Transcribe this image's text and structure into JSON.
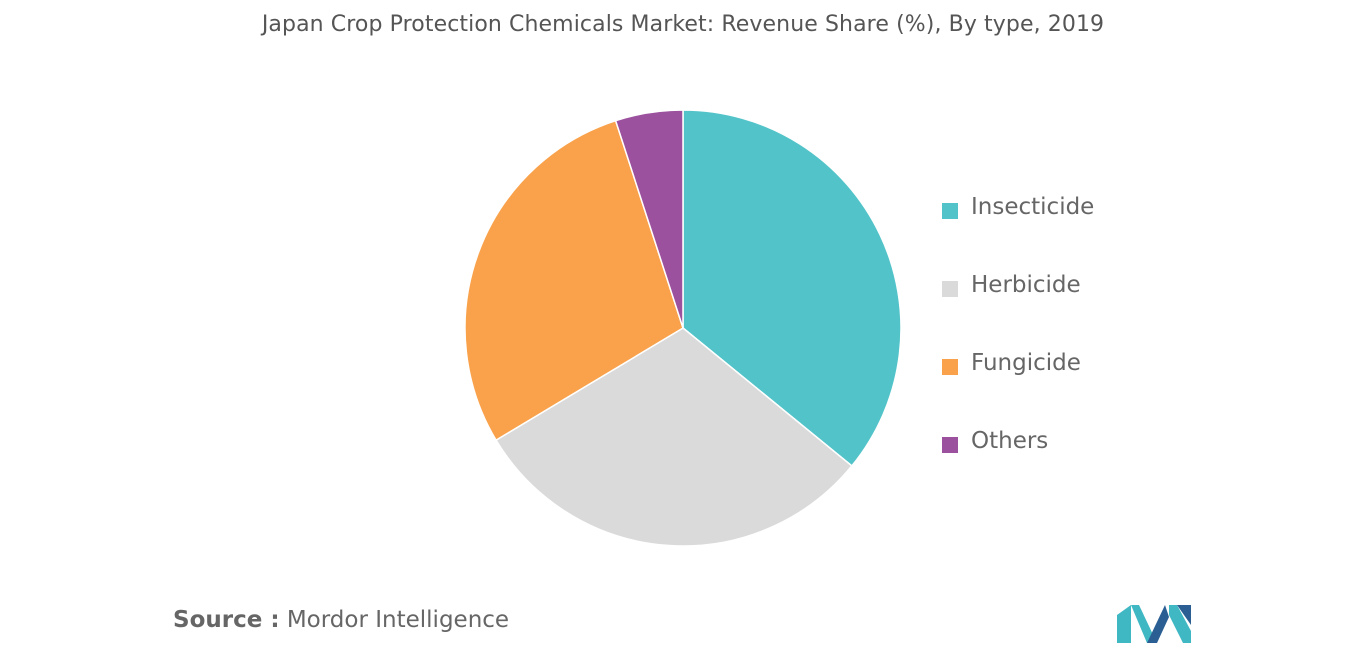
{
  "colors": {
    "insecticide": "#52c4c9",
    "herbicide": "#dadada",
    "fungicide": "#f9a24b",
    "others": "#9b519e",
    "logo_teal": "#3fb8c4",
    "logo_blue": "#2b5f93"
  },
  "chart_data": {
    "type": "pie",
    "title": "Japan Crop Protection Chemicals Market: Revenue Share (%), By type, 2019",
    "categories": [
      "Insecticide",
      "Herbicide",
      "Fungicide",
      "Others"
    ],
    "values": [
      35.9,
      30.5,
      28.6,
      5.0
    ],
    "colors": [
      "#52c4c9",
      "#dadada",
      "#f9a24b",
      "#9b519e"
    ],
    "legend_position": "right",
    "start_angle": "top",
    "direction": "clockwise"
  },
  "source": {
    "prefix": "Source :",
    "text": " Mordor Intelligence"
  },
  "logo": {
    "icon": "mordor-intelligence-logo-icon"
  }
}
